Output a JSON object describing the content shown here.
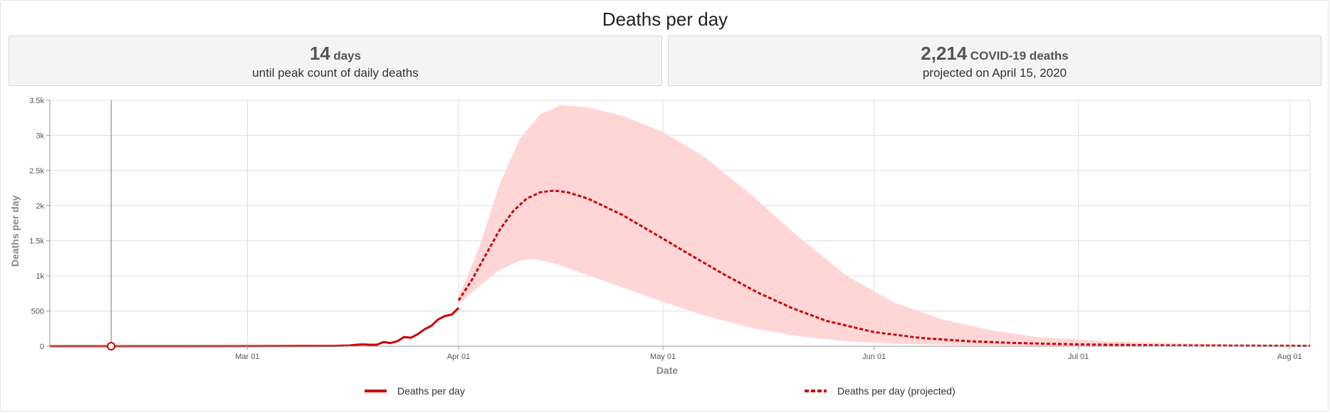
{
  "title": "Deaths per day",
  "stats": [
    {
      "value": "14",
      "unit": "days",
      "subtitle": "until peak count of daily deaths"
    },
    {
      "value": "2,214",
      "unit": "COVID-19 deaths",
      "subtitle": "projected on April 15, 2020"
    }
  ],
  "colors": {
    "line": "#cc0000",
    "band": "#ffd6d6",
    "grid": "#dddddd"
  },
  "chart_data": {
    "type": "line",
    "xlabel": "Date",
    "ylabel": "Deaths per day",
    "x_range": [
      "2020-02-01",
      "2020-08-04"
    ],
    "ylim": [
      0,
      3500
    ],
    "x_ticks": [
      {
        "date": "2020-03-01",
        "label": "Mar 01"
      },
      {
        "date": "2020-04-01",
        "label": "Apr 01"
      },
      {
        "date": "2020-05-01",
        "label": "May 01"
      },
      {
        "date": "2020-06-01",
        "label": "Jun 01"
      },
      {
        "date": "2020-07-01",
        "label": "Jul 01"
      },
      {
        "date": "2020-08-01",
        "label": "Aug 01"
      }
    ],
    "y_ticks": [
      {
        "value": 0,
        "label": "0"
      },
      {
        "value": 500,
        "label": "500"
      },
      {
        "value": 1000,
        "label": "1k"
      },
      {
        "value": 1500,
        "label": "1.5k"
      },
      {
        "value": 2000,
        "label": "2k"
      },
      {
        "value": 2500,
        "label": "2.5k"
      },
      {
        "value": 3000,
        "label": "3k"
      },
      {
        "value": 3500,
        "label": "3.5k"
      }
    ],
    "grid": true,
    "legend_position": "bottom",
    "marker": {
      "date": "2020-02-10",
      "value": 0
    },
    "series": [
      {
        "name": "Deaths per day",
        "style": "solid",
        "points": [
          [
            "2020-02-01",
            0
          ],
          [
            "2020-02-10",
            0
          ],
          [
            "2020-02-20",
            0
          ],
          [
            "2020-03-01",
            1
          ],
          [
            "2020-03-05",
            2
          ],
          [
            "2020-03-10",
            4
          ],
          [
            "2020-03-14",
            5
          ],
          [
            "2020-03-16",
            10
          ],
          [
            "2020-03-17",
            20
          ],
          [
            "2020-03-18",
            25
          ],
          [
            "2020-03-19",
            20
          ],
          [
            "2020-03-20",
            20
          ],
          [
            "2020-03-21",
            60
          ],
          [
            "2020-03-22",
            45
          ],
          [
            "2020-03-23",
            70
          ],
          [
            "2020-03-24",
            130
          ],
          [
            "2020-03-25",
            120
          ],
          [
            "2020-03-26",
            170
          ],
          [
            "2020-03-27",
            240
          ],
          [
            "2020-03-28",
            290
          ],
          [
            "2020-03-29",
            380
          ],
          [
            "2020-03-30",
            430
          ],
          [
            "2020-03-31",
            450
          ],
          [
            "2020-04-01",
            545
          ]
        ]
      },
      {
        "name": "Deaths per day (projected)",
        "style": "dashed",
        "points": [
          [
            "2020-04-01",
            650
          ],
          [
            "2020-04-03",
            950
          ],
          [
            "2020-04-05",
            1300
          ],
          [
            "2020-04-07",
            1650
          ],
          [
            "2020-04-09",
            1920
          ],
          [
            "2020-04-11",
            2100
          ],
          [
            "2020-04-13",
            2190
          ],
          [
            "2020-04-15",
            2214
          ],
          [
            "2020-04-17",
            2190
          ],
          [
            "2020-04-20",
            2100
          ],
          [
            "2020-04-25",
            1870
          ],
          [
            "2020-05-01",
            1530
          ],
          [
            "2020-05-05",
            1300
          ],
          [
            "2020-05-10",
            1020
          ],
          [
            "2020-05-15",
            760
          ],
          [
            "2020-05-20",
            540
          ],
          [
            "2020-05-25",
            360
          ],
          [
            "2020-06-01",
            200
          ],
          [
            "2020-06-08",
            115
          ],
          [
            "2020-06-15",
            70
          ],
          [
            "2020-06-22",
            45
          ],
          [
            "2020-07-01",
            25
          ],
          [
            "2020-07-15",
            10
          ],
          [
            "2020-08-04",
            5
          ]
        ]
      }
    ],
    "uncertainty_band": {
      "upper": [
        [
          "2020-04-01",
          700
        ],
        [
          "2020-04-04",
          1400
        ],
        [
          "2020-04-07",
          2300
        ],
        [
          "2020-04-10",
          2950
        ],
        [
          "2020-04-13",
          3300
        ],
        [
          "2020-04-16",
          3430
        ],
        [
          "2020-04-20",
          3400
        ],
        [
          "2020-04-25",
          3280
        ],
        [
          "2020-05-01",
          3050
        ],
        [
          "2020-05-07",
          2700
        ],
        [
          "2020-05-14",
          2150
        ],
        [
          "2020-05-21",
          1550
        ],
        [
          "2020-05-28",
          1000
        ],
        [
          "2020-06-04",
          620
        ],
        [
          "2020-06-11",
          380
        ],
        [
          "2020-06-18",
          230
        ],
        [
          "2020-06-25",
          130
        ],
        [
          "2020-07-05",
          70
        ],
        [
          "2020-07-20",
          30
        ],
        [
          "2020-08-04",
          10
        ]
      ],
      "lower": [
        [
          "2020-04-01",
          600
        ],
        [
          "2020-04-04",
          850
        ],
        [
          "2020-04-07",
          1080
        ],
        [
          "2020-04-10",
          1220
        ],
        [
          "2020-04-12",
          1240
        ],
        [
          "2020-04-15",
          1180
        ],
        [
          "2020-04-20",
          1010
        ],
        [
          "2020-04-25",
          840
        ],
        [
          "2020-05-01",
          630
        ],
        [
          "2020-05-07",
          440
        ],
        [
          "2020-05-14",
          260
        ],
        [
          "2020-05-21",
          140
        ],
        [
          "2020-05-28",
          70
        ],
        [
          "2020-06-04",
          35
        ],
        [
          "2020-06-15",
          15
        ],
        [
          "2020-07-01",
          5
        ],
        [
          "2020-08-04",
          0
        ]
      ]
    }
  }
}
